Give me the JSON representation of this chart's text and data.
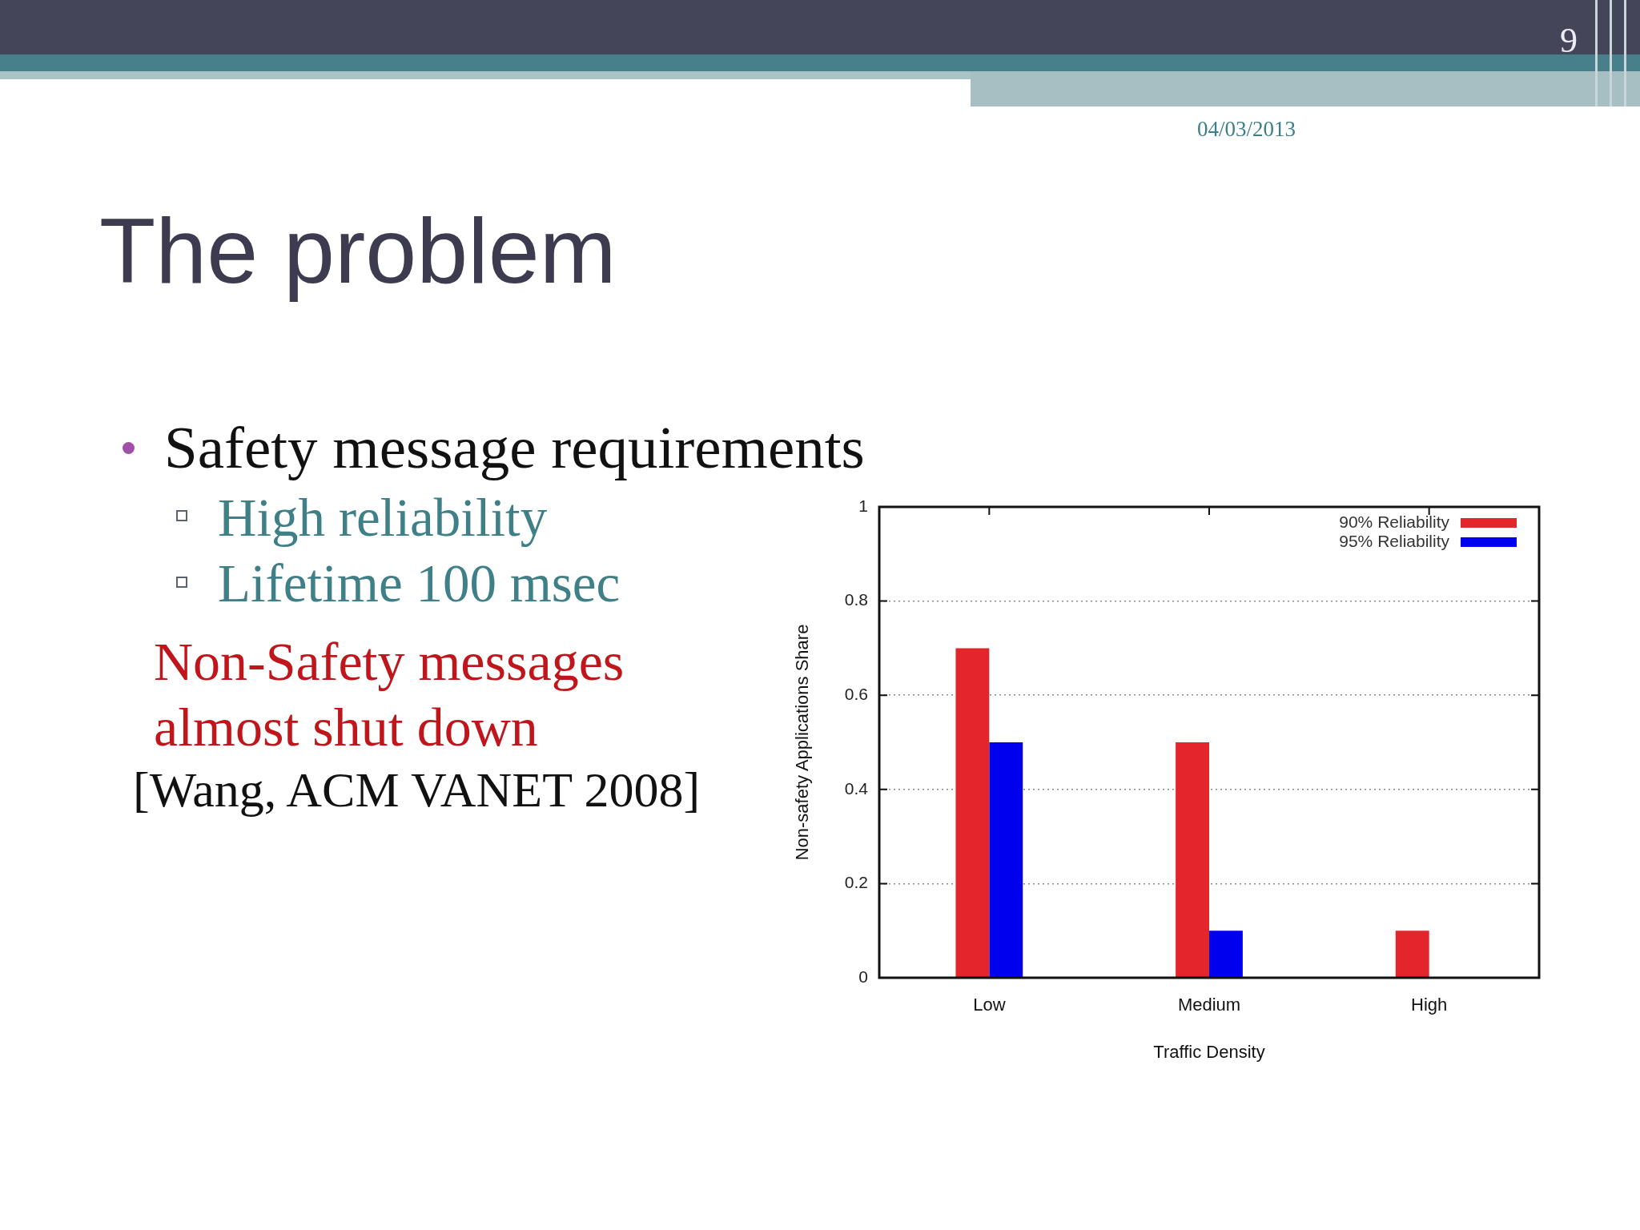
{
  "chart_data": {
    "type": "bar",
    "title": "The problem",
    "xlabel": "Traffic Density",
    "ylabel": "Non-safety Applications Share",
    "categories": [
      "Low",
      "Medium",
      "High"
    ],
    "series": [
      {
        "name": "90% Reliability",
        "color": "#e3262b",
        "values": [
          0.7,
          0.5,
          0.1
        ]
      },
      {
        "name": "95% Reliability",
        "color": "#0000ee",
        "values": [
          0.5,
          0.1,
          0
        ]
      }
    ],
    "ylim": [
      0,
      1
    ],
    "yticks": [
      0,
      0.2,
      0.4,
      0.6,
      0.8,
      1
    ],
    "grid": "y",
    "legend": "top right",
    "annotations": [
      "Safety message requirements",
      "High reliability",
      "Lifetime 100 msec",
      "Non-Safety messages almost shut down",
      "[Wang, ACM VANET 2008]",
      "04/03/2013",
      "9"
    ]
  }
}
